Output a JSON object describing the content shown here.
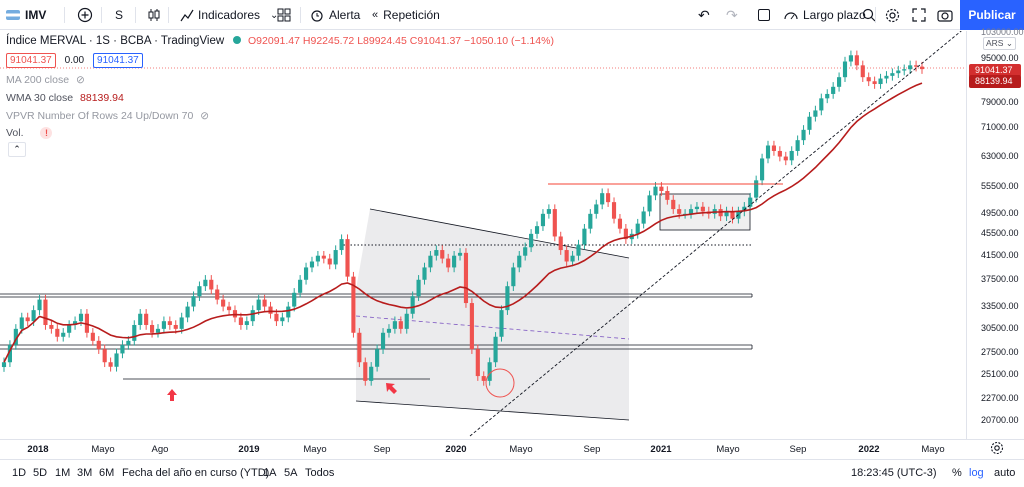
{
  "toolbar": {
    "symbol": "IMV",
    "interval": "S",
    "indicators": "Indicadores",
    "alert": "Alerta",
    "replay": "Repetición",
    "timeframe_preset": "Largo plazo",
    "publish": "Publicar"
  },
  "legend": {
    "title": "Índice MERVAL · 1S · BCBA · TradingView",
    "ohlc": "O92091.47 H92245.72 L89924.45 C91041.37 −1050.10 (−1.14%)",
    "bid": "91041.37",
    "spread": "0.00",
    "ask": "91041.37",
    "ma200_label": "MA 200 close",
    "wma30_label": "WMA 30 close",
    "wma30_value": "88139.94",
    "vpvr_label": "VPVR Number Of Rows 24 Up/Down 70",
    "vol_label": "Vol.",
    "warning": "!"
  },
  "price_axis": {
    "currency": "ARS",
    "top_partial": "103000.00",
    "ticks": [
      "95000.00",
      "87000.00",
      "79000.00",
      "71000.00",
      "63000.00",
      "55500.00",
      "49500.00",
      "45500.00",
      "41500.00",
      "37500.00",
      "33500.00",
      "30500.00",
      "27500.00",
      "25100.00",
      "22700.00",
      "20700.00"
    ],
    "last_price": "91041.37",
    "wma_price": "88139.94"
  },
  "time_axis": {
    "ticks": [
      "2018",
      "Mayo",
      "Ago",
      "2019",
      "Mayo",
      "Sep",
      "2020",
      "Mayo",
      "Sep",
      "2021",
      "Mayo",
      "Sep",
      "2022",
      "Mayo"
    ]
  },
  "bottom": {
    "ranges": [
      "1D",
      "5D",
      "1M",
      "3M",
      "6M",
      "Fecha del año en curso (YTD)",
      "1A",
      "5A",
      "Todos"
    ],
    "clock": "18:23:45 (UTC-3)",
    "percent": "%",
    "log": "log",
    "auto": "auto"
  },
  "colors": {
    "up": "#26a69a",
    "down": "#ef5350",
    "wma": "#b71c1c",
    "accent": "#2962ff",
    "resistance": "#f44336"
  },
  "chart_data": {
    "type": "candlestick",
    "symbol": "Índice MERVAL",
    "interval": "1S",
    "exchange": "BCBA",
    "scale": "log",
    "y_range": [
      19500,
      103000
    ],
    "last": {
      "open": 92091.47,
      "high": 92245.72,
      "low": 89924.45,
      "close": 91041.37,
      "change": -1050.1,
      "change_pct": -1.14
    },
    "closes_weekly_approx": [
      26500,
      28500,
      30500,
      32000,
      31500,
      33000,
      34500,
      31000,
      30500,
      29500,
      30000,
      31000,
      31500,
      32500,
      30000,
      29000,
      28000,
      26500,
      26000,
      27500,
      28500,
      29000,
      31000,
      32500,
      31000,
      30000,
      30500,
      31500,
      31000,
      30500,
      32000,
      33500,
      35000,
      36500,
      37500,
      36000,
      34500,
      33500,
      33000,
      32000,
      31000,
      31500,
      33000,
      34500,
      33500,
      32500,
      31500,
      32000,
      33500,
      35500,
      37500,
      39500,
      40500,
      41500,
      41000,
      40000,
      42500,
      44500,
      38000,
      30000,
      26500,
      24500,
      26000,
      28000,
      30000,
      30500,
      31500,
      30500,
      32500,
      35000,
      37500,
      39500,
      41500,
      42500,
      41000,
      39500,
      41500,
      42000,
      34000,
      28000,
      25000,
      24500,
      26500,
      29500,
      33000,
      36500,
      39500,
      41500,
      43000,
      45500,
      47000,
      49500,
      50500,
      45000,
      42500,
      40500,
      41500,
      43500,
      46500,
      49500,
      51500,
      54000,
      52000,
      48500,
      46500,
      44500,
      45500,
      47500,
      50000,
      53500,
      55500,
      54500,
      52500,
      50500,
      49500,
      49500,
      50500,
      51000,
      50000,
      49500,
      50500,
      49000,
      50000,
      48500,
      50000,
      51000,
      53000,
      57000,
      62500,
      66000,
      64500,
      63000,
      62000,
      64500,
      67500,
      70500,
      74500,
      76500,
      80500,
      82000,
      84500,
      88000,
      94000,
      96500,
      92500,
      88000,
      86500,
      85500,
      87500,
      88500,
      89500,
      90500,
      91000,
      92500,
      92000,
      91041.37
    ],
    "wma30_last": 88139.94,
    "drawings": {
      "horizontal_levels": [
        36100,
        27700,
        24500,
        55500,
        43500
      ],
      "channel": "descending channel 2019–2021",
      "long_trendline": "rising dotted trendline from 2020 low",
      "consolidation_box": [
        46000,
        52500
      ]
    },
    "x_labels": [
      "2018",
      "Mayo",
      "Ago",
      "2019",
      "Mayo",
      "Sep",
      "2020",
      "Mayo",
      "Sep",
      "2021",
      "Mayo",
      "Sep",
      "2022",
      "Mayo"
    ]
  }
}
